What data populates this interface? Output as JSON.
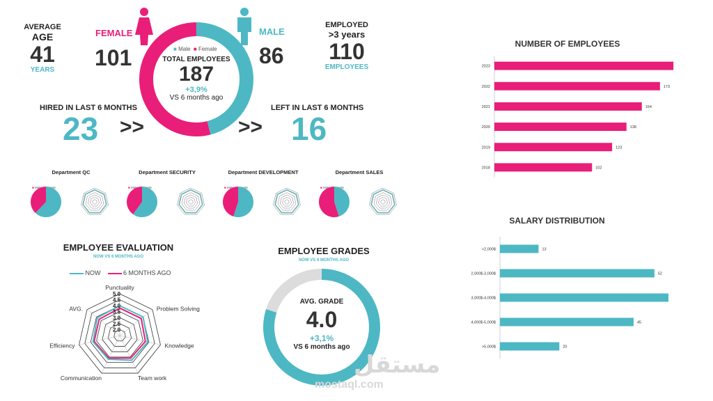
{
  "summary": {
    "avg_age_label1": "AVERAGE",
    "avg_age_label2": "AGE",
    "avg_age_value": "41",
    "avg_age_unit": "YEARS",
    "female_label": "FEMALE",
    "female_count": "101",
    "male_label": "MALE",
    "male_count": "86",
    "employed_label1": "EMPLOYED",
    "employed_label2": ">3 years",
    "employed_value": "110",
    "employed_unit": "EMPLOYEES",
    "legend_male": "Male",
    "legend_female": "Female",
    "total_label": "TOTAL EMPLOYEES",
    "total_value": "187",
    "total_change": "+3,9%",
    "total_change_note": "VS 6 months ago",
    "hired_label": "HIRED IN LAST 6 MONTHS",
    "hired_value": "23",
    "left_label": "LEFT IN LAST 6 MONTHS",
    "left_value": "16",
    "arrows": ">>",
    "gender_share": {
      "male": 86,
      "female": 101
    }
  },
  "departments": [
    {
      "title": "Department QC",
      "male_share": 0.62
    },
    {
      "title": "Department SECURITY",
      "male_share": 0.6
    },
    {
      "title": "Department DEVELOPMENT",
      "male_share": 0.55
    },
    {
      "title": "Department SALES",
      "male_share": 0.45
    }
  ],
  "dept_legend": {
    "male": "Male",
    "female": "Female"
  },
  "colors": {
    "teal": "#4db8c4",
    "pink": "#e91e78",
    "grey": "#dcdcdc",
    "purple": "#8a5aa8"
  },
  "evaluation": {
    "title": "EMPLOYEE EVALUATION",
    "subtitle": "NOW VS 6 MONTHS AGO",
    "legend_now": "NOW",
    "legend_prev": "6 MONTHS AGO",
    "scale_labels": [
      "5.0",
      "4.5",
      "4.0",
      "3.5",
      "3.0",
      "2.5",
      "2.0"
    ]
  },
  "grades": {
    "title": "EMPLOYEE GRADES",
    "subtitle": "NOW VS 6 MONTHS AGO",
    "avg_label": "AVG. GRADE",
    "avg_value": "4.0",
    "change": "+3,1%",
    "change_note": "VS 6 months ago",
    "fill_fraction": 0.8
  },
  "watermark": {
    "arabic": "مستقل",
    "latin": "mostaql.com"
  },
  "chart_data": [
    {
      "type": "radar",
      "title": "EMPLOYEE EVALUATION",
      "axes": [
        "Punctuality",
        "Problem Solving",
        "Knowledge",
        "Team work",
        "Communication",
        "Efficiency",
        "AVG."
      ],
      "rlim": [
        1.5,
        5.0
      ],
      "series": [
        {
          "name": "NOW",
          "values": [
            4.0,
            4.0,
            3.9,
            3.8,
            3.7,
            3.8,
            3.9
          ]
        },
        {
          "name": "6 MONTHS AGO",
          "values": [
            3.8,
            3.8,
            3.7,
            3.6,
            3.6,
            3.7,
            3.7
          ]
        }
      ]
    },
    {
      "type": "bar",
      "orientation": "horizontal",
      "title": "NUMBER OF EMPLOYEES",
      "categories": [
        "2023",
        "2022",
        "2021",
        "2020",
        "2019",
        "2018"
      ],
      "values": [
        187,
        173,
        154,
        138,
        123,
        102
      ],
      "xlim": [
        0,
        200
      ]
    },
    {
      "type": "bar",
      "orientation": "horizontal",
      "title": "SALARY DISTRIBUTION",
      "categories": [
        "<2,000$",
        "2,000$-3,000$",
        "3,000$-4,000$",
        "4,000$-5,000$",
        ">5,000$"
      ],
      "values": [
        13,
        52,
        57,
        45,
        20
      ],
      "xlim": [
        0,
        60
      ]
    }
  ]
}
